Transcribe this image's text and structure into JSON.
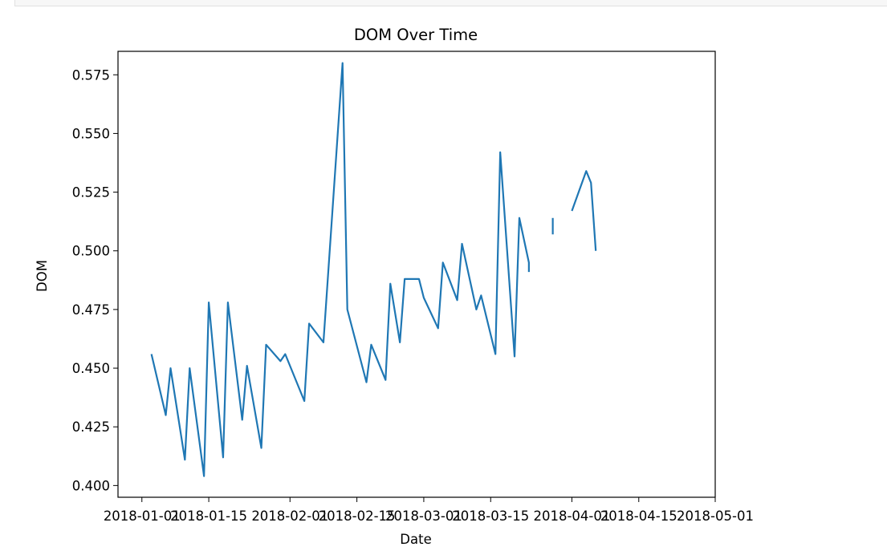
{
  "chart_data": {
    "type": "line",
    "title": "DOM Over Time",
    "xlabel": "Date",
    "ylabel": "DOM",
    "xlim": [
      "2017-12-27",
      "2018-05-01"
    ],
    "ylim": [
      0.395,
      0.585
    ],
    "grid": false,
    "x_ticks": [
      "2018-01-01",
      "2018-01-15",
      "2018-02-01",
      "2018-02-15",
      "2018-03-01",
      "2018-03-15",
      "2018-04-01",
      "2018-04-15",
      "2018-05-01"
    ],
    "y_ticks": [
      0.4,
      0.425,
      0.45,
      0.475,
      0.5,
      0.525,
      0.55,
      0.575
    ],
    "y_tick_labels": [
      "0.400",
      "0.425",
      "0.450",
      "0.475",
      "0.500",
      "0.525",
      "0.550",
      "0.575"
    ],
    "series": [
      {
        "color": "#1f77b4",
        "points": [
          [
            "2018-01-03",
            0.456
          ],
          [
            "2018-01-06",
            0.43
          ],
          [
            "2018-01-07",
            0.45
          ],
          [
            "2018-01-10",
            0.411
          ],
          [
            "2018-01-11",
            0.45
          ],
          [
            "2018-01-14",
            0.404
          ],
          [
            "2018-01-15",
            0.478
          ],
          [
            "2018-01-18",
            0.412
          ],
          [
            "2018-01-19",
            0.478
          ],
          [
            "2018-01-22",
            0.428
          ],
          [
            "2018-01-23",
            0.451
          ],
          [
            "2018-01-26",
            0.416
          ],
          [
            "2018-01-27",
            0.46
          ],
          [
            "2018-01-30",
            0.453
          ],
          [
            "2018-01-31",
            0.456
          ],
          [
            "2018-02-04",
            0.436
          ],
          [
            "2018-02-05",
            0.469
          ],
          [
            "2018-02-08",
            0.461
          ],
          [
            "2018-02-12",
            0.58
          ],
          [
            "2018-02-13",
            0.475
          ],
          [
            "2018-02-17",
            0.444
          ],
          [
            "2018-02-18",
            0.46
          ],
          [
            "2018-02-21",
            0.445
          ],
          [
            "2018-02-22",
            0.486
          ],
          [
            "2018-02-24",
            0.461
          ],
          [
            "2018-02-25",
            0.488
          ],
          [
            "2018-02-28",
            0.488
          ],
          [
            "2018-03-01",
            0.48
          ],
          [
            "2018-03-04",
            0.467
          ],
          [
            "2018-03-05",
            0.495
          ],
          [
            "2018-03-08",
            0.479
          ],
          [
            "2018-03-09",
            0.503
          ],
          [
            "2018-03-12",
            0.475
          ],
          [
            "2018-03-13",
            0.481
          ],
          [
            "2018-03-16",
            0.456
          ],
          [
            "2018-03-17",
            0.542
          ],
          [
            "2018-03-20",
            0.455
          ],
          [
            "2018-03-21",
            0.514
          ],
          [
            "2018-03-23",
            0.495
          ],
          [
            "2018-03-23",
            0.491
          ],
          null,
          [
            "2018-03-28",
            0.514
          ],
          [
            "2018-03-28",
            0.507
          ],
          null,
          [
            "2018-04-01",
            0.517
          ],
          [
            "2018-04-04",
            0.534
          ],
          [
            "2018-04-05",
            0.529
          ],
          [
            "2018-04-06",
            0.5
          ]
        ]
      }
    ]
  }
}
